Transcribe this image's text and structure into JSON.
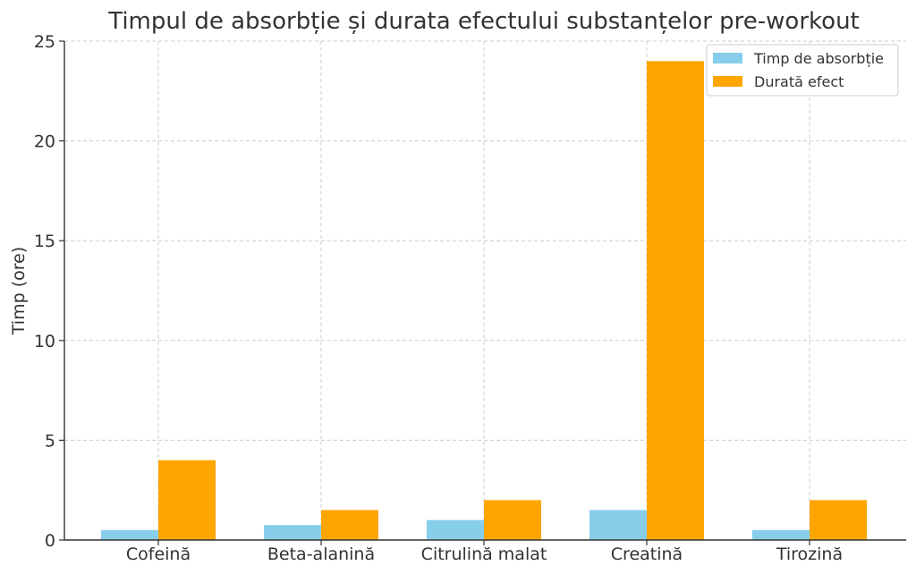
{
  "chart_data": {
    "type": "bar",
    "title": "Timpul de absorbție și durata efectului substanțelor pre-workout",
    "xlabel": "",
    "ylabel": "Timp (ore)",
    "ylim": [
      0,
      25
    ],
    "yticks": [
      0,
      5,
      10,
      15,
      20,
      25
    ],
    "categories": [
      "Cofeină",
      "Beta-alanină",
      "Citrulină malat",
      "Creatină",
      "Tirozină"
    ],
    "series": [
      {
        "name": "Timp de absorbție",
        "color": "#87CEEB",
        "values": [
          0.5,
          0.75,
          1,
          1.5,
          0.5
        ]
      },
      {
        "name": "Durată efect",
        "color": "#FFA500",
        "values": [
          4,
          1.5,
          2,
          24,
          2
        ]
      }
    ],
    "grid": true,
    "legend_position": "top-right"
  }
}
